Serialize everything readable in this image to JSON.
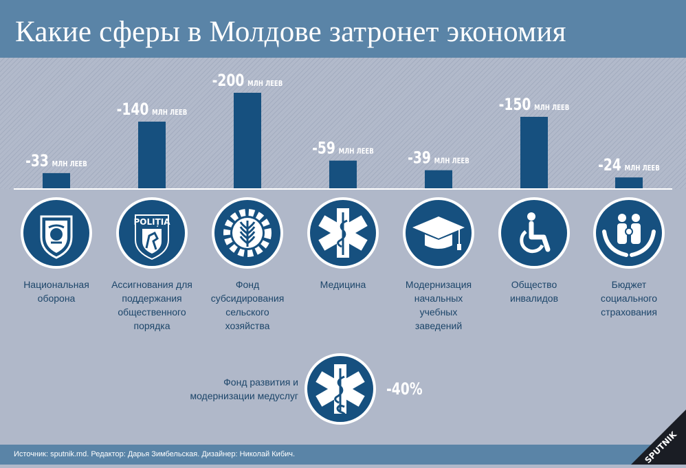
{
  "title": "Какие сферы в Молдове затронет экономия",
  "chart_data": {
    "type": "bar",
    "unit": "МЛН ЛЕЕВ",
    "categories": [
      {
        "label": "Национальная оборона",
        "lines": [
          "Национальная",
          "оборона"
        ],
        "icon": "army-emblem-icon"
      },
      {
        "label": "Ассигнования для поддержания общественного порядка",
        "lines": [
          "Ассигнования для",
          "поддержания",
          "общественного",
          "порядка"
        ],
        "icon": "police-badge-icon",
        "icon_text": "POLIȚIA"
      },
      {
        "label": "Фонд субсидирования сельского хозяйства",
        "lines": [
          "Фонд",
          "субсидирования",
          "сельского",
          "хозяйства"
        ],
        "icon": "wheat-gear-icon"
      },
      {
        "label": "Медицина",
        "lines": [
          "Медицина"
        ],
        "icon": "star-of-life-icon"
      },
      {
        "label": "Модернизация начальных учебных заведений",
        "lines": [
          "Модернизация",
          "начальных",
          "учебных",
          "заведений"
        ],
        "icon": "graduation-cap-icon"
      },
      {
        "label": "Общество инвалидов",
        "lines": [
          "Общество",
          "инвалидов"
        ],
        "icon": "wheelchair-icon"
      },
      {
        "label": "Бюджет социального страхования",
        "lines": [
          "Бюджет",
          "социального",
          "страхования"
        ],
        "icon": "family-hands-icon"
      }
    ],
    "values": [
      -33,
      -140,
      -200,
      -59,
      -39,
      -150,
      -24
    ],
    "value_labels": [
      "-33",
      "-140",
      "-200",
      "-59",
      "-39",
      "-150",
      "-24"
    ],
    "ylim": [
      0,
      200
    ],
    "grid": false,
    "legend": "none",
    "extra": {
      "label_lines": [
        "Фонд развития и",
        "модернизации медуслуг"
      ],
      "value_label": "-40%",
      "value": -40,
      "icon": "star-of-life-dollar-icon"
    }
  },
  "colors": {
    "bar": "#16507f",
    "header": "#5a84a7",
    "background": "#b0b8c9",
    "icon_circle": "#16507f",
    "text": "#1c4569"
  },
  "footer": {
    "source": "Источник: sputnik.md. Редактор: Дарья Зимбельская. Дизайнер: Николай Кибич.",
    "logo": "SPUTNIK"
  }
}
